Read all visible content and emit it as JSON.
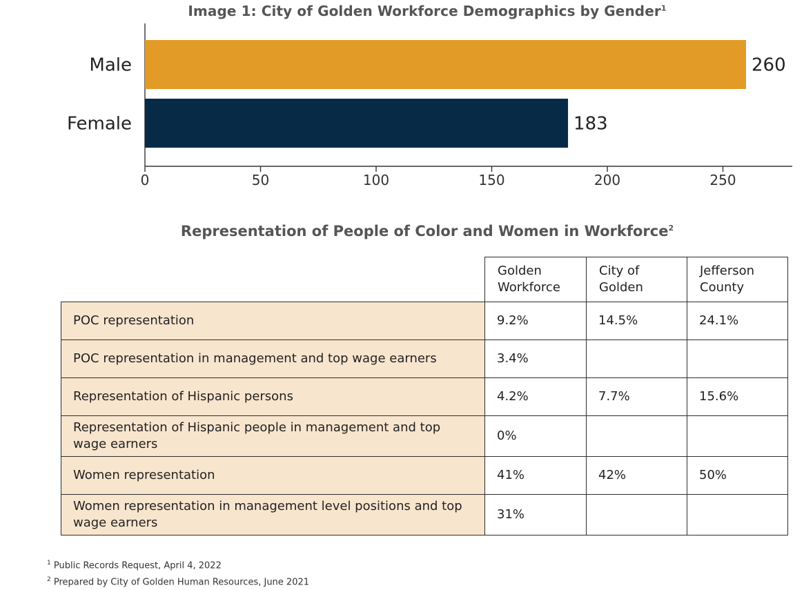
{
  "chart_data": {
    "type": "bar",
    "orientation": "horizontal",
    "title": "Image 1:  City of Golden Workforce Demographics by Gender",
    "title_footnote_marker": "1",
    "categories": [
      "Male",
      "Female"
    ],
    "values": [
      260,
      183
    ],
    "data_labels": [
      "260",
      "183"
    ],
    "colors": [
      "#e29b26",
      "#072a47"
    ],
    "xlim": [
      0,
      280
    ],
    "ticks": [
      0,
      50,
      100,
      150,
      200,
      250
    ],
    "tick_labels": [
      "0",
      "50",
      "100",
      "150",
      "200",
      "250"
    ],
    "xlabel": "",
    "ylabel": "",
    "grid": false
  },
  "table": {
    "title": "Representation of People of Color and Women in Workforce",
    "title_footnote_marker": "2",
    "columns": [
      "Golden Workforce",
      "City of Golden",
      "Jefferson County"
    ],
    "rows": [
      {
        "label": "POC representation",
        "values": [
          "9.2%",
          "14.5%",
          "24.1%"
        ]
      },
      {
        "label": "POC representation in management and top wage earners",
        "values": [
          "3.4%",
          "",
          ""
        ]
      },
      {
        "label": "Representation of Hispanic persons",
        "values": [
          "4.2%",
          "7.7%",
          "15.6%"
        ]
      },
      {
        "label": "Representation of Hispanic people in management and top wage earners",
        "values": [
          "0%",
          "",
          ""
        ]
      },
      {
        "label": "Women representation",
        "values": [
          "41%",
          "42%",
          "50%"
        ]
      },
      {
        "label": "Women representation in management level positions and top wage earners",
        "values": [
          "31%",
          "",
          ""
        ]
      }
    ]
  },
  "footnotes": [
    {
      "marker": "1",
      "text": "Public Records Request, April 4, 2022"
    },
    {
      "marker": "2",
      "text": "Prepared by City of Golden Human Resources, June 2021"
    }
  ]
}
